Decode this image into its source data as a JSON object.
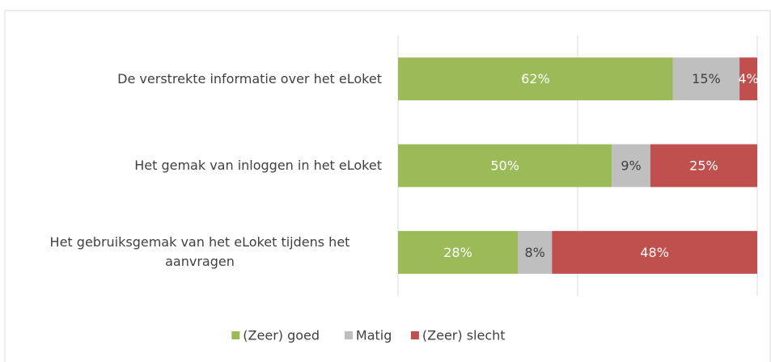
{
  "chart_data": {
    "type": "bar",
    "orientation": "horizontal",
    "stack": "percent",
    "categories": [
      "De verstrekte informatie over het eLoket",
      "Het gemak van inloggen in het eLoket",
      "Het gebruiksgemak van het eLoket tijdens het aanvragen"
    ],
    "series": [
      {
        "name": "(Zeer) goed",
        "color": "#9bbb59",
        "label_color": "#ffffff",
        "values": [
          62,
          50,
          28
        ],
        "value_labels": [
          "62%",
          "50%",
          "28%"
        ]
      },
      {
        "name": "Matig",
        "color": "#bfbfbf",
        "label_color": "#404040",
        "values": [
          15,
          9,
          8
        ],
        "value_labels": [
          "15%",
          "9%",
          "8%"
        ]
      },
      {
        "name": "(Zeer) slecht",
        "color": "#c0504d",
        "label_color": "#ffffff",
        "values": [
          4,
          25,
          48
        ],
        "value_labels": [
          "4%",
          "25%",
          "48%"
        ]
      }
    ],
    "xlim": [
      0,
      100
    ],
    "xticks": [
      0,
      50,
      100
    ],
    "grid": true,
    "legend": "bottom"
  }
}
